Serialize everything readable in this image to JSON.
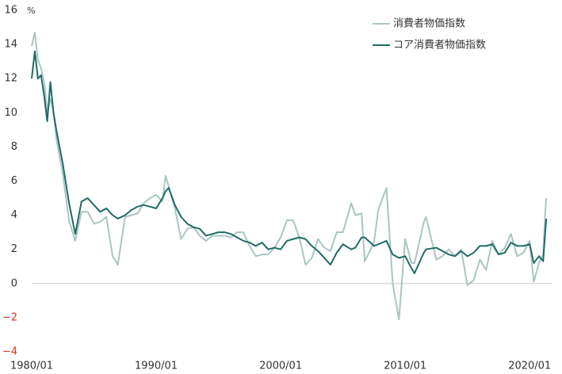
{
  "chart_data": {
    "type": "line",
    "y_unit": "%",
    "x": [
      "1980/01",
      "1980/04",
      "1980/07",
      "1980/10",
      "1981/01",
      "1981/04",
      "1981/07",
      "1981/10",
      "1982/01",
      "1982/07",
      "1983/01",
      "1983/07",
      "1984/01",
      "1984/07",
      "1985/01",
      "1985/07",
      "1986/01",
      "1986/07",
      "1986/12",
      "1987/07",
      "1988/01",
      "1988/07",
      "1989/01",
      "1989/07",
      "1990/01",
      "1990/07",
      "1990/10",
      "1991/01",
      "1991/07",
      "1992/01",
      "1992/07",
      "1993/01",
      "1993/07",
      "1994/01",
      "1994/07",
      "1995/01",
      "1995/07",
      "1996/01",
      "1996/07",
      "1997/01",
      "1997/07",
      "1998/01",
      "1998/07",
      "1999/01",
      "1999/07",
      "2000/01",
      "2000/07",
      "2001/01",
      "2001/07",
      "2002/01",
      "2002/07",
      "2003/01",
      "2003/07",
      "2004/01",
      "2004/07",
      "2005/01",
      "2005/09",
      "2006/01",
      "2006/07",
      "2006/10",
      "2007/07",
      "2007/11",
      "2008/07",
      "2009/01",
      "2009/07",
      "2010/01",
      "2010/07",
      "2010/10",
      "2011/07",
      "2011/09",
      "2012/07",
      "2013/01",
      "2013/07",
      "2014/01",
      "2014/07",
      "2015/01",
      "2015/07",
      "2016/01",
      "2016/07",
      "2017/01",
      "2017/07",
      "2018/01",
      "2018/07",
      "2019/01",
      "2019/07",
      "2020/01",
      "2020/05",
      "2020/10",
      "2021/02",
      "2021/04",
      "2021/05"
    ],
    "series": [
      {
        "name": "消費者物価指数",
        "color": "#a9c6c2",
        "values": [
          13.9,
          14.7,
          13.1,
          12.6,
          11.8,
          10.0,
          10.8,
          10.1,
          8.4,
          6.4,
          3.7,
          2.5,
          4.2,
          4.2,
          3.5,
          3.6,
          3.9,
          1.6,
          1.1,
          3.9,
          4.0,
          4.1,
          4.7,
          5.0,
          5.2,
          4.8,
          6.3,
          5.7,
          4.4,
          2.6,
          3.2,
          3.3,
          2.8,
          2.5,
          2.8,
          2.8,
          2.8,
          2.7,
          3.0,
          3.0,
          2.2,
          1.6,
          1.7,
          1.7,
          2.1,
          2.7,
          3.7,
          3.7,
          2.7,
          1.1,
          1.5,
          2.6,
          2.1,
          1.9,
          3.0,
          3.0,
          4.7,
          4.0,
          4.1,
          1.3,
          2.4,
          4.3,
          5.6,
          0.0,
          -2.1,
          2.6,
          1.2,
          1.2,
          3.6,
          3.9,
          1.4,
          1.6,
          2.0,
          1.6,
          2.0,
          -0.1,
          0.2,
          1.4,
          0.8,
          2.5,
          1.7,
          2.1,
          2.9,
          1.6,
          1.8,
          2.5,
          0.1,
          1.2,
          1.7,
          4.2,
          5.0
        ]
      },
      {
        "name": "コア消費者物価指数",
        "color": "#1f6b66",
        "values": [
          12.0,
          13.6,
          12.0,
          12.2,
          11.0,
          9.5,
          11.8,
          10.0,
          8.9,
          7.0,
          4.7,
          2.9,
          4.8,
          5.0,
          4.6,
          4.2,
          4.4,
          4.0,
          3.8,
          4.0,
          4.3,
          4.5,
          4.6,
          4.5,
          4.4,
          5.0,
          5.4,
          5.6,
          4.6,
          3.9,
          3.5,
          3.3,
          3.2,
          2.8,
          2.9,
          3.0,
          3.0,
          2.9,
          2.7,
          2.5,
          2.4,
          2.2,
          2.4,
          2.0,
          2.1,
          2.0,
          2.5,
          2.6,
          2.7,
          2.6,
          2.2,
          1.9,
          1.5,
          1.1,
          1.8,
          2.3,
          2.0,
          2.1,
          2.7,
          2.7,
          2.2,
          2.3,
          2.5,
          1.7,
          1.5,
          1.6,
          0.9,
          0.6,
          1.8,
          2.0,
          2.1,
          1.9,
          1.7,
          1.6,
          1.9,
          1.6,
          1.8,
          2.2,
          2.2,
          2.3,
          1.7,
          1.8,
          2.4,
          2.2,
          2.2,
          2.3,
          1.2,
          1.6,
          1.3,
          3.0,
          3.8
        ]
      }
    ],
    "xlim": [
      "1980/01",
      "2021/11"
    ],
    "xticks": [
      "1980/01",
      "1990/01",
      "2000/01",
      "2010/01",
      "2020/01"
    ],
    "ylim": [
      -4,
      16
    ],
    "yticks": [
      16,
      14,
      12,
      10,
      8,
      6,
      4,
      2,
      0,
      {
        "value": -2,
        "label": "−2"
      },
      {
        "value": -4,
        "label": "−4"
      }
    ],
    "negative_tick_color": "#e0301e",
    "legend": "upper right"
  }
}
